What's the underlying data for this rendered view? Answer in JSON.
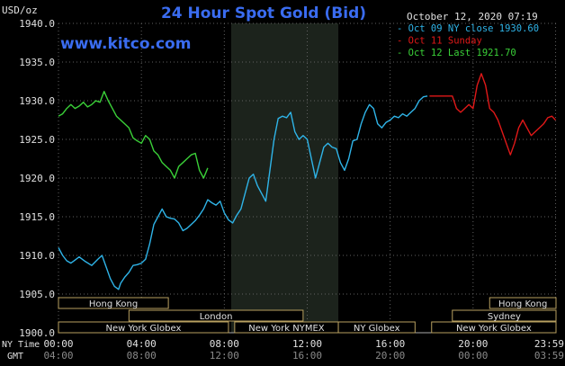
{
  "title": "24 Hour Spot Gold (Bid)",
  "date_stamp": "October 12, 2020 07:19",
  "watermark": "www.kitco.com",
  "unit_label": "USD/oz",
  "colors": {
    "background": "#000000",
    "title": "#3a6cf0",
    "watermark": "#3a6cf0",
    "axis_text": "#e0e0e0",
    "grid": "#606060",
    "shade": "#1c231c",
    "session_box_fill": "#000000",
    "session_box_border": "#b8a060",
    "session_text": "#e0e0e0"
  },
  "chart_data": {
    "type": "line",
    "xlim": [
      0,
      24
    ],
    "ylim": [
      1900,
      1940
    ],
    "y_ticks": [
      {
        "value": 1900,
        "label": "1900.0"
      },
      {
        "value": 1905,
        "label": "1905.0"
      },
      {
        "value": 1910,
        "label": "1910.0"
      },
      {
        "value": 1915,
        "label": "1915.0"
      },
      {
        "value": 1920,
        "label": "1920.0"
      },
      {
        "value": 1925,
        "label": "1925.0"
      },
      {
        "value": 1930,
        "label": "1930.0"
      },
      {
        "value": 1935,
        "label": "1935.0"
      },
      {
        "value": 1940,
        "label": "1940.0"
      }
    ],
    "x_ticks": [
      {
        "value": 0,
        "ny": "00:00",
        "gmt": "04:00"
      },
      {
        "value": 4,
        "ny": "04:00",
        "gmt": "08:00"
      },
      {
        "value": 8,
        "ny": "08:00",
        "gmt": "12:00"
      },
      {
        "value": 12,
        "ny": "12:00",
        "gmt": "16:00"
      },
      {
        "value": 16,
        "ny": "16:00",
        "gmt": "20:00"
      },
      {
        "value": 20,
        "ny": "20:00",
        "gmt": "00:00"
      },
      {
        "value": 23.98,
        "ny": "23:59",
        "gmt": "03:59"
      }
    ],
    "x_row_labels": {
      "ny": "NY Time",
      "gmt": "GMT"
    },
    "shaded_region": [
      8.33,
      13.5
    ],
    "grid": true,
    "legend_position": "top-right",
    "series": [
      {
        "name": "Oct 09 NY close 1930.60",
        "color": "#2fb4e8",
        "x": [
          0,
          0.2,
          0.4,
          0.6,
          0.8,
          1.0,
          1.3,
          1.6,
          1.9,
          2.1,
          2.3,
          2.5,
          2.7,
          2.9,
          3.0,
          3.2,
          3.4,
          3.6,
          3.8,
          4.0,
          4.2,
          4.4,
          4.6,
          4.8,
          5.0,
          5.2,
          5.4,
          5.6,
          5.8,
          6.0,
          6.2,
          6.4,
          6.6,
          6.8,
          7.0,
          7.2,
          7.4,
          7.6,
          7.8,
          8.0,
          8.2,
          8.4,
          8.6,
          8.8,
          9.0,
          9.2,
          9.4,
          9.6,
          9.8,
          10.0,
          10.2,
          10.4,
          10.6,
          10.8,
          11.0,
          11.2,
          11.4,
          11.6,
          11.8,
          12.0,
          12.2,
          12.4,
          12.6,
          12.8,
          13.0,
          13.2,
          13.4,
          13.6,
          13.8,
          14.0,
          14.2,
          14.4,
          14.6,
          14.8,
          15.0,
          15.2,
          15.4,
          15.6,
          15.8,
          16.0,
          16.2,
          16.4,
          16.6,
          16.8,
          17.0,
          17.2,
          17.4,
          17.6,
          17.8
        ],
        "values": [
          1911.0,
          1910.0,
          1909.3,
          1909.0,
          1909.4,
          1909.8,
          1909.2,
          1908.7,
          1909.5,
          1910.0,
          1908.5,
          1907.0,
          1906.0,
          1905.6,
          1906.4,
          1907.2,
          1907.8,
          1908.7,
          1908.8,
          1909.0,
          1909.5,
          1911.5,
          1914.0,
          1915.0,
          1916.0,
          1915.0,
          1914.8,
          1914.7,
          1914.2,
          1913.2,
          1913.5,
          1914.0,
          1914.5,
          1915.2,
          1916.0,
          1917.2,
          1916.8,
          1916.5,
          1917.0,
          1915.5,
          1914.6,
          1914.2,
          1915.2,
          1916.0,
          1918.0,
          1920.0,
          1920.5,
          1919.0,
          1918.0,
          1917.0,
          1921.0,
          1925.0,
          1927.7,
          1928.0,
          1927.8,
          1928.5,
          1926.0,
          1925.0,
          1925.5,
          1925.0,
          1922.5,
          1920.0,
          1922.0,
          1924.0,
          1924.5,
          1924.0,
          1923.8,
          1922.0,
          1921.0,
          1922.5,
          1924.8,
          1925.0,
          1927.0,
          1928.5,
          1929.5,
          1929.0,
          1927.0,
          1926.5,
          1927.2,
          1927.5,
          1928.0,
          1927.8,
          1928.3,
          1928.0,
          1928.5,
          1929.0,
          1930.0,
          1930.5,
          1930.6
        ]
      },
      {
        "name": "Oct 11 Sunday",
        "color": "#e01818",
        "x": [
          17.9,
          19.0,
          19.2,
          19.4,
          19.6,
          19.8,
          20.0,
          20.2,
          20.4,
          20.6,
          20.8,
          21.0,
          21.2,
          21.4,
          21.6,
          21.8,
          22.0,
          22.2,
          22.4,
          22.6,
          22.8,
          23.0,
          23.2,
          23.4,
          23.6,
          23.8,
          23.98
        ],
        "values": [
          1930.6,
          1930.6,
          1929.0,
          1928.5,
          1929.0,
          1929.5,
          1929.0,
          1932.0,
          1933.5,
          1932.0,
          1929.0,
          1928.5,
          1927.5,
          1926.0,
          1924.5,
          1923.0,
          1924.5,
          1926.5,
          1927.5,
          1926.5,
          1925.5,
          1926.0,
          1926.5,
          1927.0,
          1927.8,
          1928.0,
          1927.5
        ]
      },
      {
        "name": "Oct 12 Last 1921.70",
        "color": "#3ad038",
        "x": [
          0,
          0.2,
          0.4,
          0.6,
          0.8,
          1.0,
          1.2,
          1.4,
          1.6,
          1.8,
          2.0,
          2.2,
          2.4,
          2.6,
          2.8,
          3.0,
          3.2,
          3.4,
          3.6,
          3.8,
          4.0,
          4.2,
          4.4,
          4.6,
          4.8,
          5.0,
          5.2,
          5.4,
          5.6,
          5.8,
          6.0,
          6.2,
          6.4,
          6.6,
          6.8,
          7.0,
          7.2
        ],
        "values": [
          1928.0,
          1928.3,
          1929.0,
          1929.5,
          1929.0,
          1929.3,
          1929.8,
          1929.2,
          1929.5,
          1930.0,
          1929.8,
          1931.2,
          1930.0,
          1929.0,
          1928.0,
          1927.5,
          1927.0,
          1926.5,
          1925.2,
          1924.8,
          1924.5,
          1925.5,
          1925.0,
          1923.5,
          1923.0,
          1922.0,
          1921.5,
          1921.0,
          1920.0,
          1921.5,
          1922.0,
          1922.5,
          1923.0,
          1923.2,
          1921.0,
          1920.0,
          1921.3
        ]
      }
    ]
  },
  "sessions": [
    {
      "name": "Hong Kong",
      "start": 0,
      "end": 5.3,
      "row": 0
    },
    {
      "name": "London",
      "start": 3.4,
      "end": 11.8,
      "row": 1
    },
    {
      "name": "New York Globex",
      "start": 0,
      "end": 8.2,
      "row": 2
    },
    {
      "name": "New York NYMEX",
      "start": 8.5,
      "end": 13.5,
      "row": 2
    },
    {
      "name": "NY Globex",
      "start": 13.5,
      "end": 17.2,
      "row": 2
    },
    {
      "name": "Hong Kong",
      "start": 20.8,
      "end": 24,
      "row": 0
    },
    {
      "name": "Sydney",
      "start": 19.0,
      "end": 24,
      "row": 1
    },
    {
      "name": "New York Globex",
      "start": 18.0,
      "end": 24,
      "row": 2
    }
  ]
}
